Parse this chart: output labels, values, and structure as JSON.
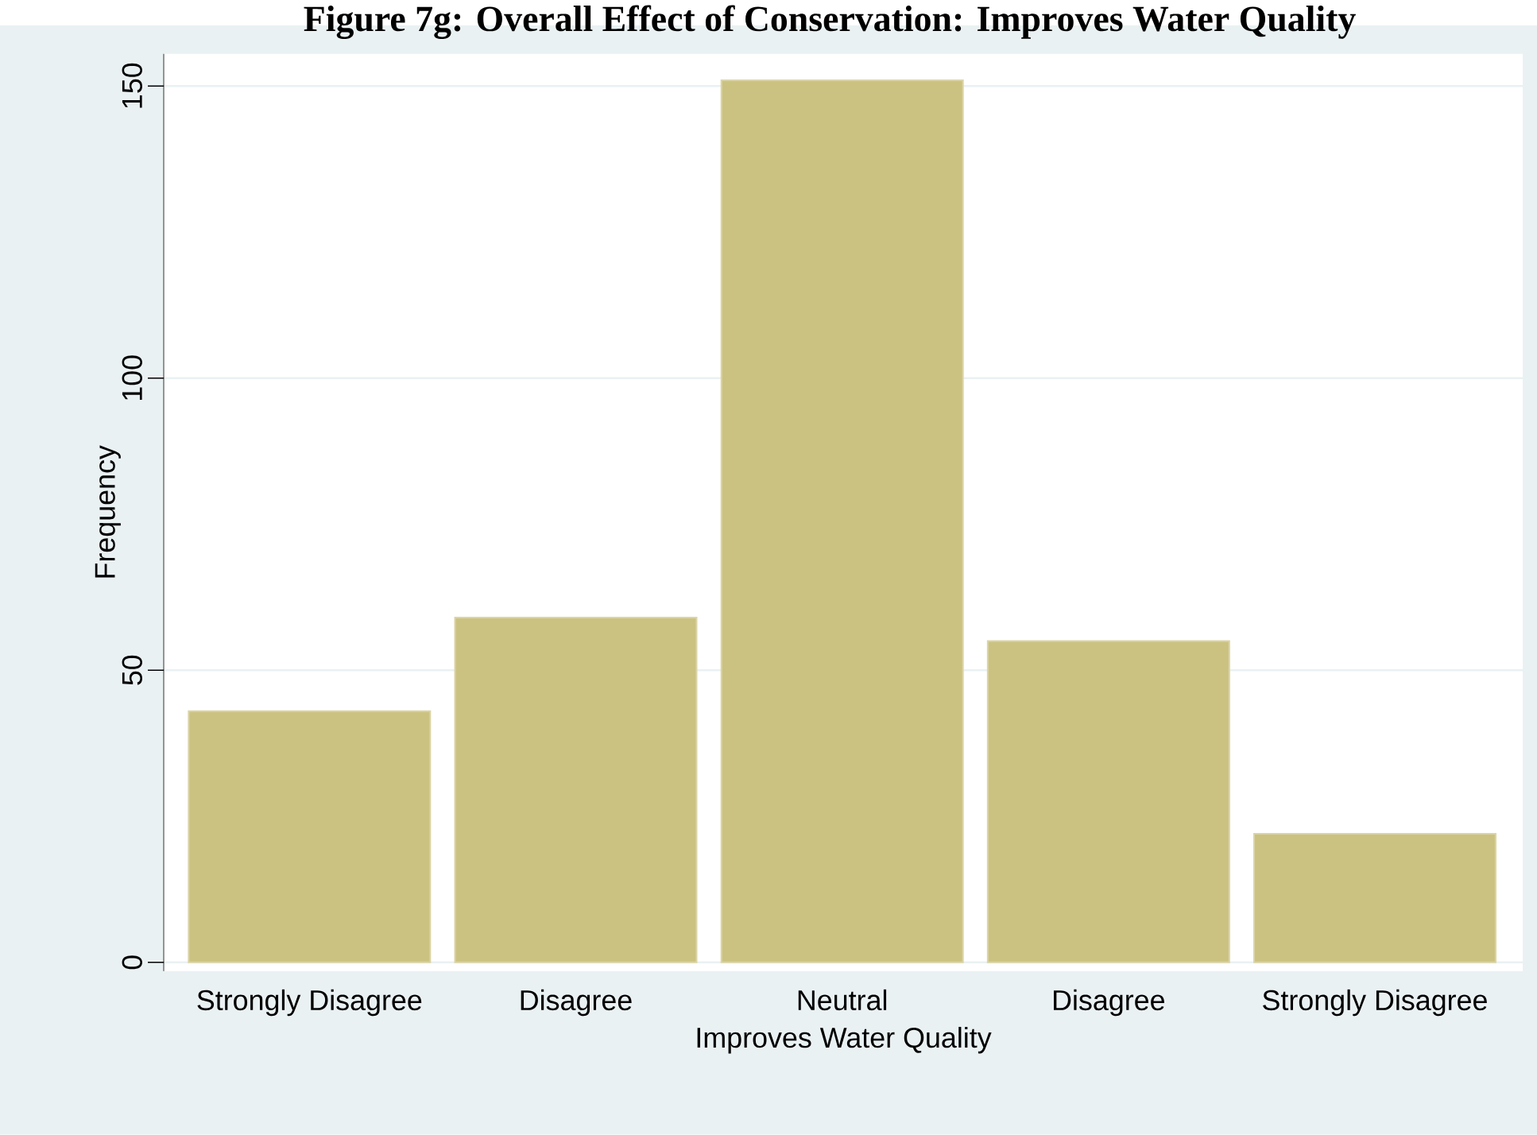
{
  "chart_data": {
    "type": "bar",
    "title": "Figure 7g: Overall Effect of Conservation: Improves Water Quality",
    "xlabel": "Improves Water Quality",
    "ylabel": "Frequency",
    "categories": [
      "Strongly Disagree",
      "Disagree",
      "Neutral",
      "Disagree",
      "Strongly Disagree"
    ],
    "values": [
      43,
      59,
      151,
      55,
      22
    ],
    "color": "#cbc281",
    "ylim": [
      -1.5,
      155.5
    ],
    "yticks": [
      0,
      50,
      100,
      150
    ],
    "grid": "y"
  }
}
